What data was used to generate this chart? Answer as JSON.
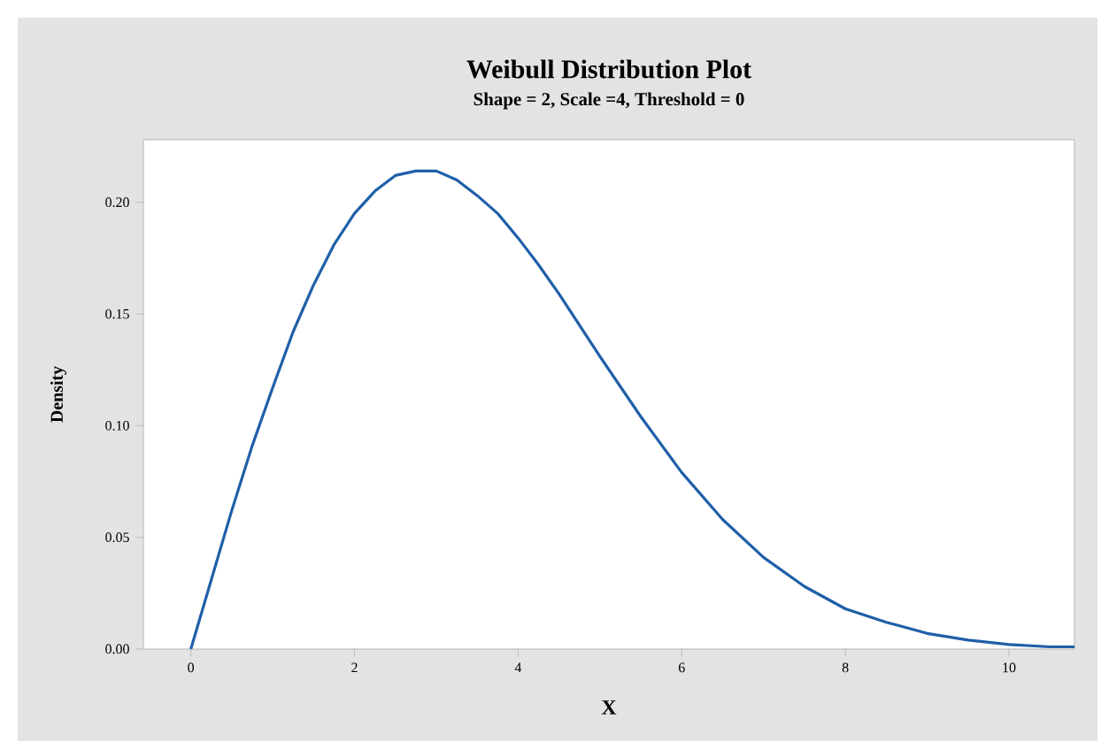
{
  "chart_data": {
    "type": "line",
    "title": "Weibull Distribution Plot",
    "subtitle": "Shape = 2, Scale =4, Threshold = 0",
    "xlabel": "X",
    "ylabel": "Density",
    "xlim": [
      -0.58,
      10.8
    ],
    "ylim": [
      0,
      0.228
    ],
    "xticks": [
      0,
      2,
      4,
      6,
      8,
      10
    ],
    "yticks": [
      {
        "value": 0,
        "label": "0.00"
      },
      {
        "value": 0.05,
        "label": "0.05"
      },
      {
        "value": 0.1,
        "label": "0.10"
      },
      {
        "value": 0.15,
        "label": "0.15"
      },
      {
        "value": 0.2,
        "label": "0.20"
      }
    ],
    "series": [
      {
        "color": "#1f5fa8",
        "x": [
          0,
          0.25,
          0.5,
          0.75,
          1,
          1.25,
          1.5,
          1.75,
          2,
          2.25,
          2.5,
          2.75,
          3,
          3.25,
          3.5,
          3.75,
          4,
          4.25,
          4.5,
          4.75,
          5,
          5.5,
          6,
          6.5,
          7,
          7.5,
          8,
          8.5,
          9,
          9.5,
          10,
          10.5,
          10.8
        ],
        "values": [
          0,
          0.031,
          0.062,
          0.091,
          0.117,
          0.142,
          0.163,
          0.181,
          0.195,
          0.205,
          0.212,
          0.214,
          0.214,
          0.21,
          0.203,
          0.195,
          0.184,
          0.172,
          0.159,
          0.145,
          0.131,
          0.104,
          0.079,
          0.058,
          0.041,
          0.028,
          0.018,
          0.012,
          0.007,
          0.004,
          0.002,
          0.001,
          0.001
        ]
      }
    ]
  }
}
